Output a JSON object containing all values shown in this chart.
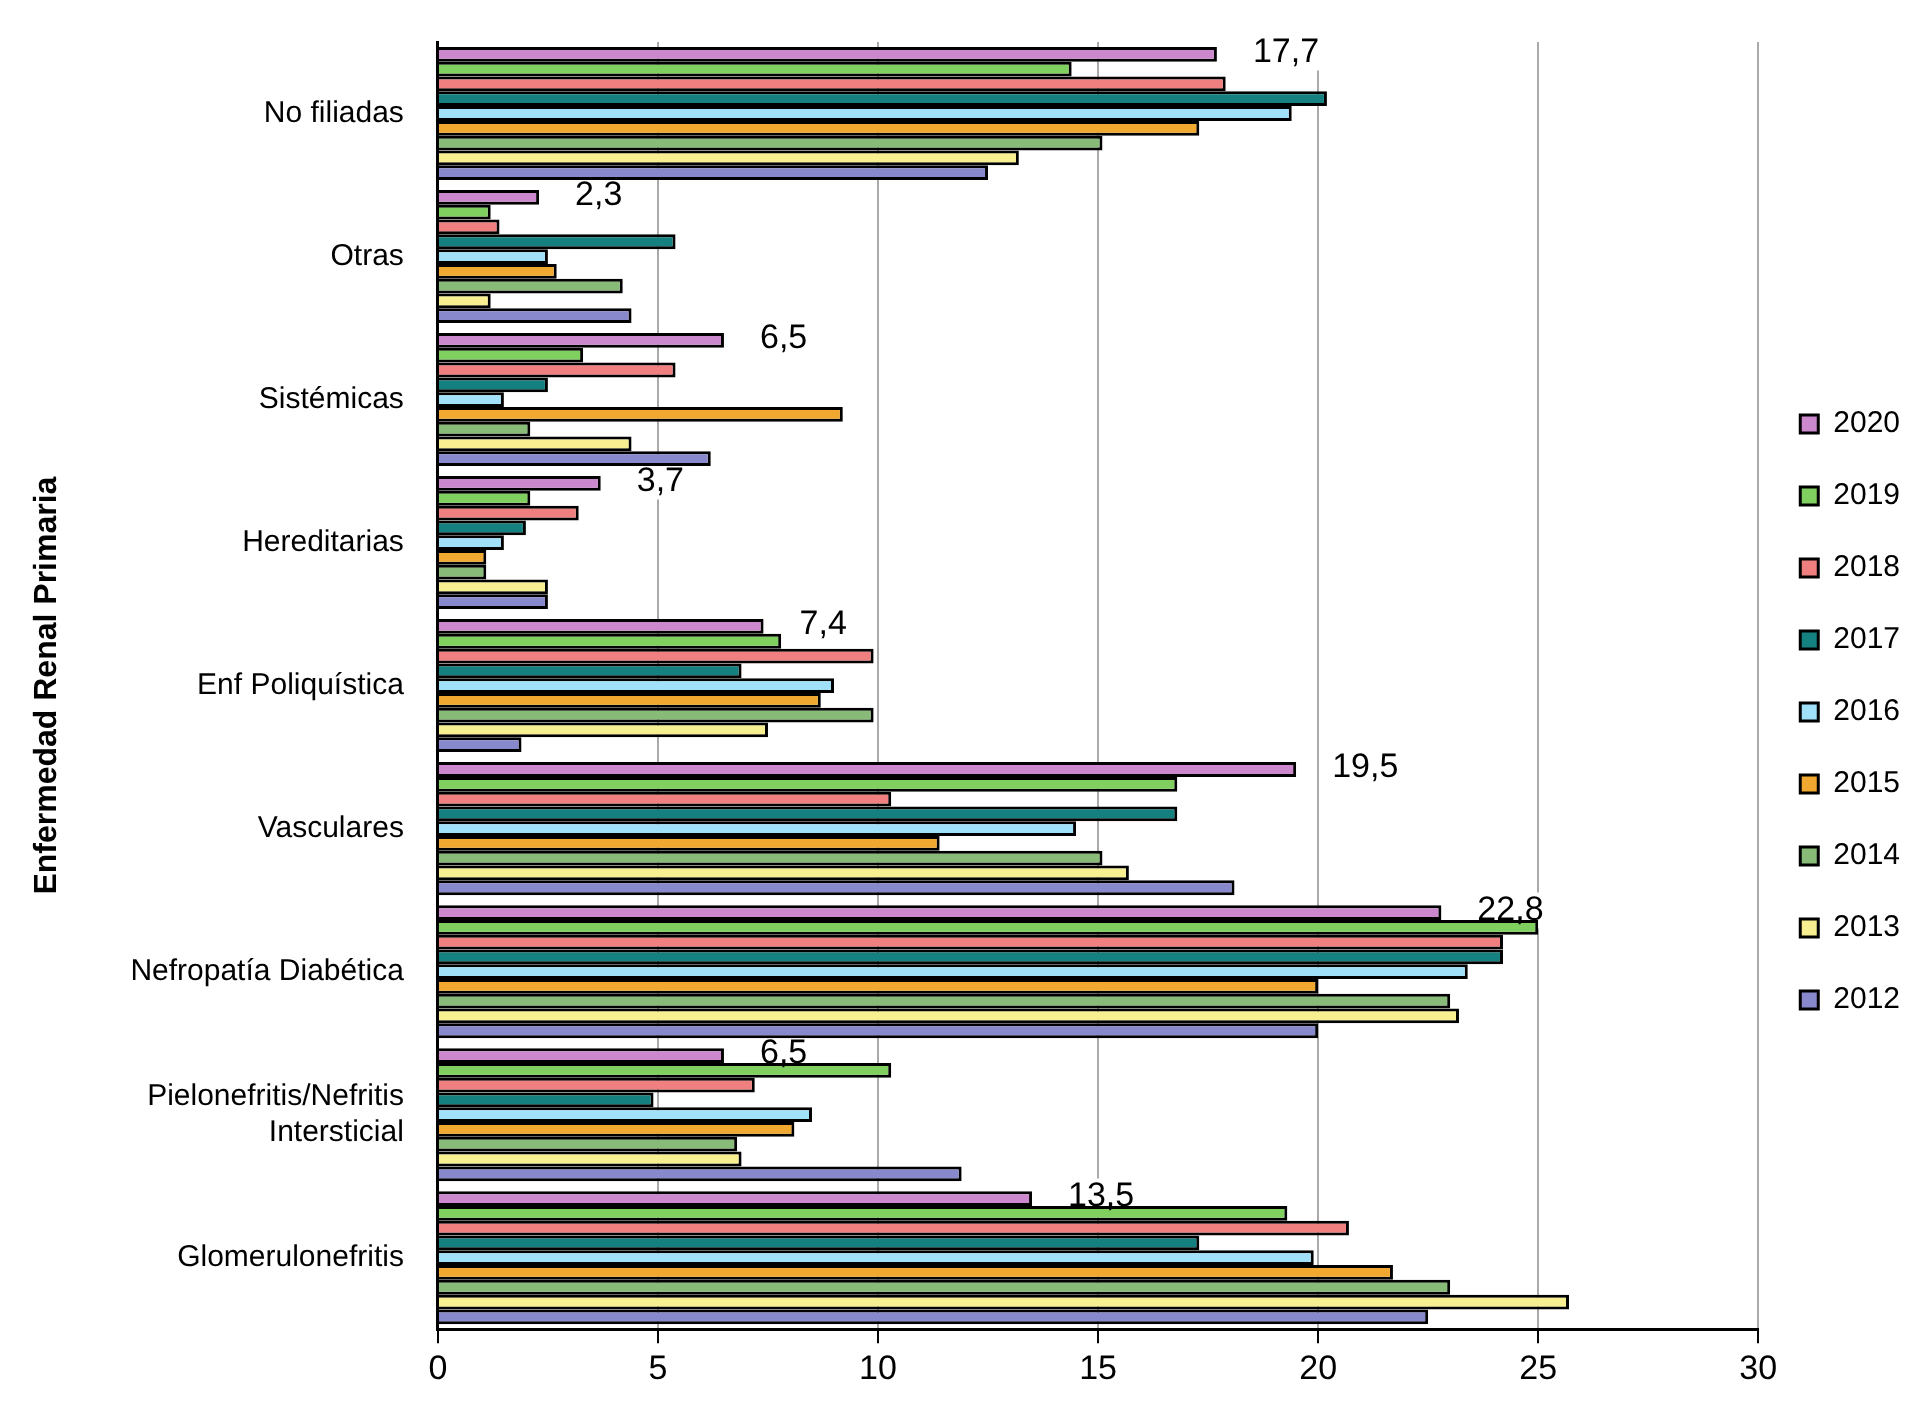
{
  "chart_data": {
    "type": "bar",
    "orientation": "horizontal",
    "ylabel": "Enfermedad Renal Primaria",
    "categories": [
      "No filiadas",
      "Otras",
      "Sistémicas",
      "Hereditarias",
      "Enf Poliquística",
      "Vasculares",
      "Nefropatía Diabética",
      "Pielonefritis/Nefritis Intersticial",
      "Glomerulonefritis"
    ],
    "series": [
      {
        "name": "2020",
        "color": "#cc88cc",
        "values": [
          17.7,
          2.3,
          6.5,
          3.7,
          7.4,
          19.5,
          22.8,
          6.5,
          13.5
        ],
        "value_labels": [
          "17,7",
          "2,3",
          "6,5",
          "3,7",
          "7,4",
          "19,5",
          "22,8",
          "6,5",
          "13,5"
        ]
      },
      {
        "name": "2019",
        "color": "#80d060",
        "values": [
          14.4,
          1.2,
          3.3,
          2.1,
          7.8,
          16.8,
          25.0,
          10.3,
          19.3
        ]
      },
      {
        "name": "2018",
        "color": "#f08080",
        "values": [
          17.9,
          1.4,
          5.4,
          3.2,
          9.9,
          10.3,
          24.2,
          7.2,
          20.7
        ]
      },
      {
        "name": "2017",
        "color": "#158080",
        "values": [
          20.2,
          5.4,
          2.5,
          2.0,
          6.9,
          16.8,
          24.2,
          4.9,
          17.3
        ]
      },
      {
        "name": "2016",
        "color": "#a0e0f8",
        "values": [
          19.4,
          2.5,
          1.5,
          1.5,
          9.0,
          14.5,
          23.4,
          8.5,
          19.9
        ]
      },
      {
        "name": "2015",
        "color": "#f0a830",
        "values": [
          17.3,
          2.7,
          9.2,
          1.1,
          8.7,
          11.4,
          20.0,
          8.1,
          21.7
        ]
      },
      {
        "name": "2014",
        "color": "#88bb77",
        "values": [
          15.1,
          4.2,
          2.1,
          1.1,
          9.9,
          15.1,
          23.0,
          6.8,
          23.0
        ]
      },
      {
        "name": "2013",
        "color": "#f8f090",
        "values": [
          13.2,
          1.2,
          4.4,
          2.5,
          7.5,
          15.7,
          23.2,
          6.9,
          25.7
        ]
      },
      {
        "name": "2012",
        "color": "#8888cc",
        "values": [
          12.5,
          4.4,
          6.2,
          2.5,
          1.9,
          18.1,
          20.0,
          11.9,
          22.5
        ]
      }
    ],
    "xlim": [
      0,
      30
    ],
    "xticks": [
      0,
      5,
      10,
      15,
      20,
      25,
      30
    ],
    "grid": "x",
    "legend": "right"
  }
}
